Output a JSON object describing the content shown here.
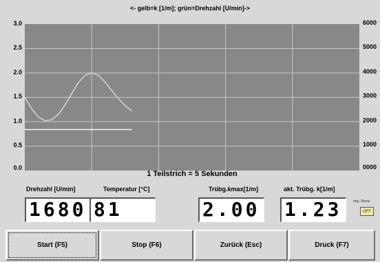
{
  "chart_title": "<- gelb=k [1/m]; grün=Drehzahl [U/min]->",
  "chart_note": "1 Teilstrich = 5 Sekunden",
  "chart_data": {
    "type": "line",
    "title": "<- gelb=k [1/m]; grün=Drehzahl [U/min]->",
    "xlabel": "1 Teilstrich = 5 Sekunden",
    "ylim_left": [
      0,
      3
    ],
    "ylim_right": [
      0,
      6000
    ],
    "left_ticks": [
      "0.0",
      "0.5",
      "1.0",
      "1.5",
      "2.0",
      "2.5",
      "3.0"
    ],
    "right_ticks": [
      "0000",
      "1000",
      "2000",
      "3000",
      "4000",
      "5000",
      "6000"
    ],
    "x_divisions": 5,
    "grid": true,
    "series": [
      {
        "color": "#d0d0d0",
        "x": [
          0,
          0.5,
          1,
          1.5,
          2,
          2.5,
          3,
          3.5,
          4,
          4.5,
          5,
          5.5,
          6,
          6.5,
          7,
          7.5,
          8
        ],
        "values": [
          1.5,
          1.27,
          1.1,
          1.02,
          1.04,
          1.15,
          1.34,
          1.57,
          1.8,
          1.95,
          2.0,
          1.95,
          1.81,
          1.64,
          1.47,
          1.33,
          1.22
        ]
      },
      {
        "color": "#ffffff",
        "x": [
          0,
          8
        ],
        "values": [
          0.84,
          0.84
        ]
      }
    ]
  },
  "readouts": [
    {
      "label": "Drehzahl [U/min]",
      "value": "1680"
    },
    {
      "label": "Temperatur [°C]",
      "value": "81"
    },
    {
      "label": "Trübg.kmax[1/m]",
      "value": "2.00"
    },
    {
      "label": "akt. Trübg. k[1/m]",
      "value": "1.23"
    }
  ],
  "mini_toggle": {
    "label": "neg. Werte",
    "state": "OFF"
  },
  "buttons": {
    "start": "Start (F5)",
    "stop": "Stop (F6)",
    "back": "Zurück (Esc)",
    "print": "Druck (F7)"
  },
  "colors": {
    "plot_bg": "#888888",
    "grid": "#c8c8c8",
    "background": "#d8d8d8"
  }
}
